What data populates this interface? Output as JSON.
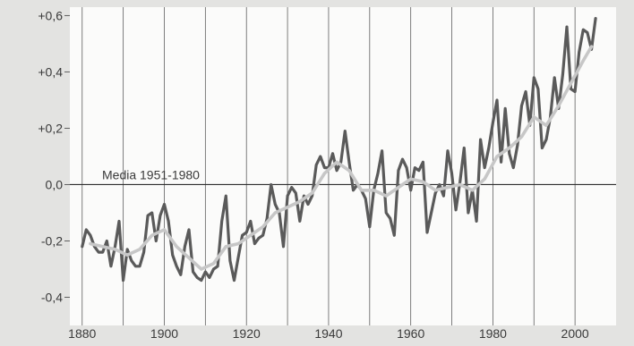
{
  "colors": {
    "background": "#e3e3e1",
    "plot_background": "#fbfbfa",
    "annual_line": "#5a5a5a",
    "smoothed_line": "#c7c7c7",
    "grid_line": "#5f5f5f",
    "text": "#3a3a3a"
  },
  "chart_data": {
    "type": "line",
    "title": "",
    "xlabel": "",
    "ylabel": "",
    "xlim": [
      1877,
      2010
    ],
    "ylim": [
      -0.5,
      0.63
    ],
    "x_ticks": [
      1880,
      1890,
      1900,
      1910,
      1920,
      1930,
      1940,
      1950,
      1960,
      1970,
      1980,
      1990,
      2000
    ],
    "x_tick_labels": [
      {
        "value": 1880,
        "label": "1880"
      },
      {
        "value": 1900,
        "label": "1900"
      },
      {
        "value": 1920,
        "label": "1920"
      },
      {
        "value": 1940,
        "label": "1940"
      },
      {
        "value": 1960,
        "label": "1960"
      },
      {
        "value": 1980,
        "label": "1980"
      },
      {
        "value": 2000,
        "label": "2000"
      }
    ],
    "y_ticks": [
      {
        "value": 0.6,
        "label": "+0,6"
      },
      {
        "value": 0.4,
        "label": "+0,4"
      },
      {
        "value": 0.2,
        "label": "+0,2"
      },
      {
        "value": 0.0,
        "label": "0,0"
      },
      {
        "value": -0.2,
        "label": "-0,2"
      },
      {
        "value": -0.4,
        "label": "-0,4"
      }
    ],
    "grid": {
      "vertical": true,
      "horizontal": false
    },
    "annotation": {
      "text": "Media 1951-1980",
      "y": 0.0
    },
    "series": [
      {
        "style": "annual",
        "x": [
          1880,
          1881,
          1882,
          1883,
          1884,
          1885,
          1886,
          1887,
          1888,
          1889,
          1890,
          1891,
          1892,
          1893,
          1894,
          1895,
          1896,
          1897,
          1898,
          1899,
          1900,
          1901,
          1902,
          1903,
          1904,
          1905,
          1906,
          1907,
          1908,
          1909,
          1910,
          1911,
          1912,
          1913,
          1914,
          1915,
          1916,
          1917,
          1918,
          1919,
          1920,
          1921,
          1922,
          1923,
          1924,
          1925,
          1926,
          1927,
          1928,
          1929,
          1930,
          1931,
          1932,
          1933,
          1934,
          1935,
          1936,
          1937,
          1938,
          1939,
          1940,
          1941,
          1942,
          1943,
          1944,
          1945,
          1946,
          1947,
          1948,
          1949,
          1950,
          1951,
          1952,
          1953,
          1954,
          1955,
          1956,
          1957,
          1958,
          1959,
          1960,
          1961,
          1962,
          1963,
          1964,
          1965,
          1966,
          1967,
          1968,
          1969,
          1970,
          1971,
          1972,
          1973,
          1974,
          1975,
          1976,
          1977,
          1978,
          1979,
          1980,
          1981,
          1982,
          1983,
          1984,
          1985,
          1986,
          1987,
          1988,
          1989,
          1990,
          1991,
          1992,
          1993,
          1994,
          1995,
          1996,
          1997,
          1998,
          1999,
          2000,
          2001,
          2002,
          2003,
          2004,
          2005
        ],
        "y": [
          -0.22,
          -0.16,
          -0.18,
          -0.22,
          -0.24,
          -0.24,
          -0.2,
          -0.29,
          -0.22,
          -0.13,
          -0.34,
          -0.23,
          -0.27,
          -0.29,
          -0.29,
          -0.24,
          -0.11,
          -0.1,
          -0.2,
          -0.11,
          -0.07,
          -0.13,
          -0.25,
          -0.29,
          -0.32,
          -0.22,
          -0.16,
          -0.31,
          -0.33,
          -0.34,
          -0.31,
          -0.33,
          -0.3,
          -0.29,
          -0.13,
          -0.04,
          -0.27,
          -0.34,
          -0.26,
          -0.18,
          -0.17,
          -0.13,
          -0.21,
          -0.19,
          -0.18,
          -0.12,
          0.0,
          -0.07,
          -0.1,
          -0.22,
          -0.04,
          -0.01,
          -0.03,
          -0.13,
          -0.04,
          -0.07,
          -0.04,
          0.07,
          0.1,
          0.06,
          0.06,
          0.11,
          0.05,
          0.08,
          0.19,
          0.08,
          -0.02,
          0.0,
          -0.02,
          -0.05,
          -0.15,
          -0.02,
          0.04,
          0.12,
          -0.1,
          -0.12,
          -0.18,
          0.05,
          0.09,
          0.06,
          -0.02,
          0.06,
          0.05,
          0.08,
          -0.17,
          -0.1,
          -0.03,
          0.0,
          -0.04,
          0.12,
          0.04,
          -0.09,
          0.01,
          0.13,
          -0.1,
          -0.02,
          -0.13,
          0.16,
          0.06,
          0.13,
          0.22,
          0.3,
          0.08,
          0.27,
          0.11,
          0.06,
          0.14,
          0.28,
          0.33,
          0.21,
          0.38,
          0.34,
          0.13,
          0.16,
          0.24,
          0.38,
          0.27,
          0.39,
          0.56,
          0.34,
          0.33,
          0.47,
          0.55,
          0.54,
          0.48,
          0.59
        ]
      },
      {
        "style": "smoothed",
        "x": [
          1882,
          1885,
          1888,
          1891,
          1894,
          1897,
          1900,
          1903,
          1906,
          1909,
          1912,
          1915,
          1918,
          1921,
          1924,
          1927,
          1930,
          1933,
          1936,
          1939,
          1942,
          1945,
          1948,
          1951,
          1954,
          1957,
          1960,
          1963,
          1966,
          1969,
          1972,
          1975,
          1978,
          1981,
          1984,
          1987,
          1990,
          1993,
          1996,
          1999,
          2002,
          2004
        ],
        "y": [
          -0.21,
          -0.22,
          -0.23,
          -0.25,
          -0.23,
          -0.18,
          -0.16,
          -0.22,
          -0.26,
          -0.3,
          -0.28,
          -0.22,
          -0.21,
          -0.18,
          -0.15,
          -0.1,
          -0.08,
          -0.06,
          -0.03,
          0.04,
          0.08,
          0.05,
          -0.02,
          -0.02,
          -0.04,
          -0.01,
          0.02,
          0.01,
          -0.02,
          -0.01,
          0.0,
          -0.02,
          0.02,
          0.1,
          0.13,
          0.17,
          0.24,
          0.21,
          0.28,
          0.36,
          0.44,
          0.49
        ]
      }
    ]
  }
}
